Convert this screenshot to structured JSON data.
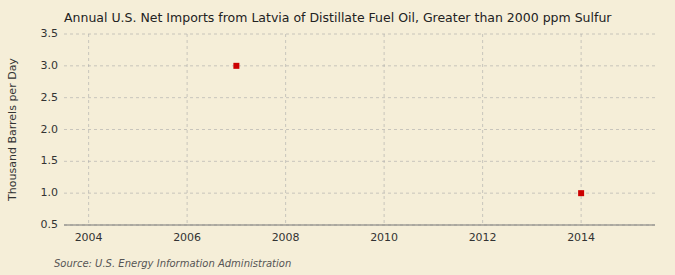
{
  "chart_data": {
    "type": "scatter",
    "title": "Annual U.S. Net Imports from Latvia of Distillate Fuel Oil, Greater than 2000 ppm Sulfur",
    "ylabel": "Thousand Barrels per Day",
    "source": "Source: U.S. Energy Information Administration",
    "x": [
      2007,
      2014
    ],
    "values": [
      3.0,
      1.0
    ],
    "color": "#cc0000",
    "marker": "square",
    "xlim": [
      2003.5,
      2015.5
    ],
    "ylim": [
      0.5,
      3.5
    ],
    "xticks": [
      2004,
      2006,
      2008,
      2010,
      2012,
      2014
    ],
    "yticks": [
      0.5,
      {
        "value": 1.0,
        "label": "1.0"
      },
      1.5,
      {
        "value": 2.0,
        "label": "2.0"
      },
      2.5,
      {
        "value": 3.0,
        "label": "3.0"
      },
      3.5
    ],
    "grid": true
  }
}
